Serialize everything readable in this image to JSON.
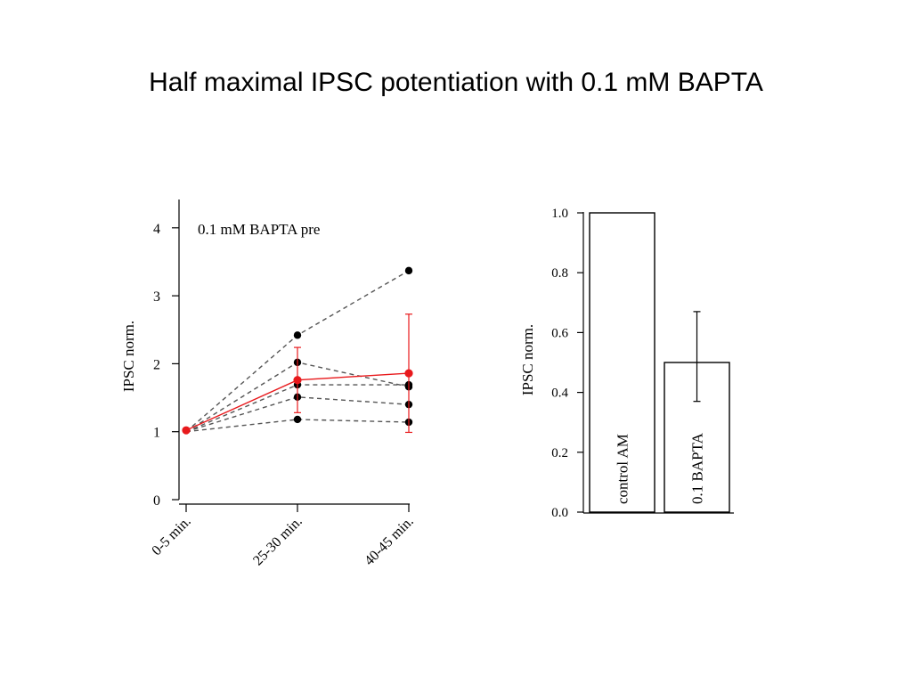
{
  "slide": {
    "title": "Half maximal IPSC potentiation with 0.1 mM BAPTA"
  },
  "chart_data": [
    {
      "type": "line",
      "annotation": "0.1 mM BAPTA pre",
      "xlabel": "",
      "ylabel": "IPSC norm.",
      "categories": [
        "0-5 min.",
        "25-30 min.",
        "40-45 min."
      ],
      "yticks": [
        "0",
        "1",
        "2",
        "3",
        "4"
      ],
      "ylim": [
        0,
        4.2
      ],
      "individual_color": "#000000",
      "mean_color": "#e8191c",
      "individual": [
        {
          "values": [
            1.0,
            2.42,
            3.37
          ]
        },
        {
          "values": [
            1.0,
            2.02,
            1.66
          ]
        },
        {
          "values": [
            1.0,
            1.69,
            1.69
          ]
        },
        {
          "values": [
            1.0,
            1.51,
            1.4
          ]
        },
        {
          "values": [
            1.0,
            1.18,
            1.14
          ]
        }
      ],
      "mean": {
        "values": [
          1.02,
          1.76,
          1.86
        ],
        "err_low": [
          0,
          0.48,
          0.87
        ],
        "err_high": [
          0,
          0.48,
          0.87
        ]
      }
    },
    {
      "type": "bar",
      "ylabel": "IPSC norm.",
      "categories": [
        "control AM",
        "0.1 BAPTA"
      ],
      "values": [
        1.0,
        0.5
      ],
      "err_low": [
        0,
        0.13
      ],
      "err_high": [
        0,
        0.17
      ],
      "yticks": [
        "0.0",
        "0.2",
        "0.4",
        "0.6",
        "0.8",
        "1.0"
      ],
      "ylim": [
        0,
        1.0
      ]
    }
  ]
}
